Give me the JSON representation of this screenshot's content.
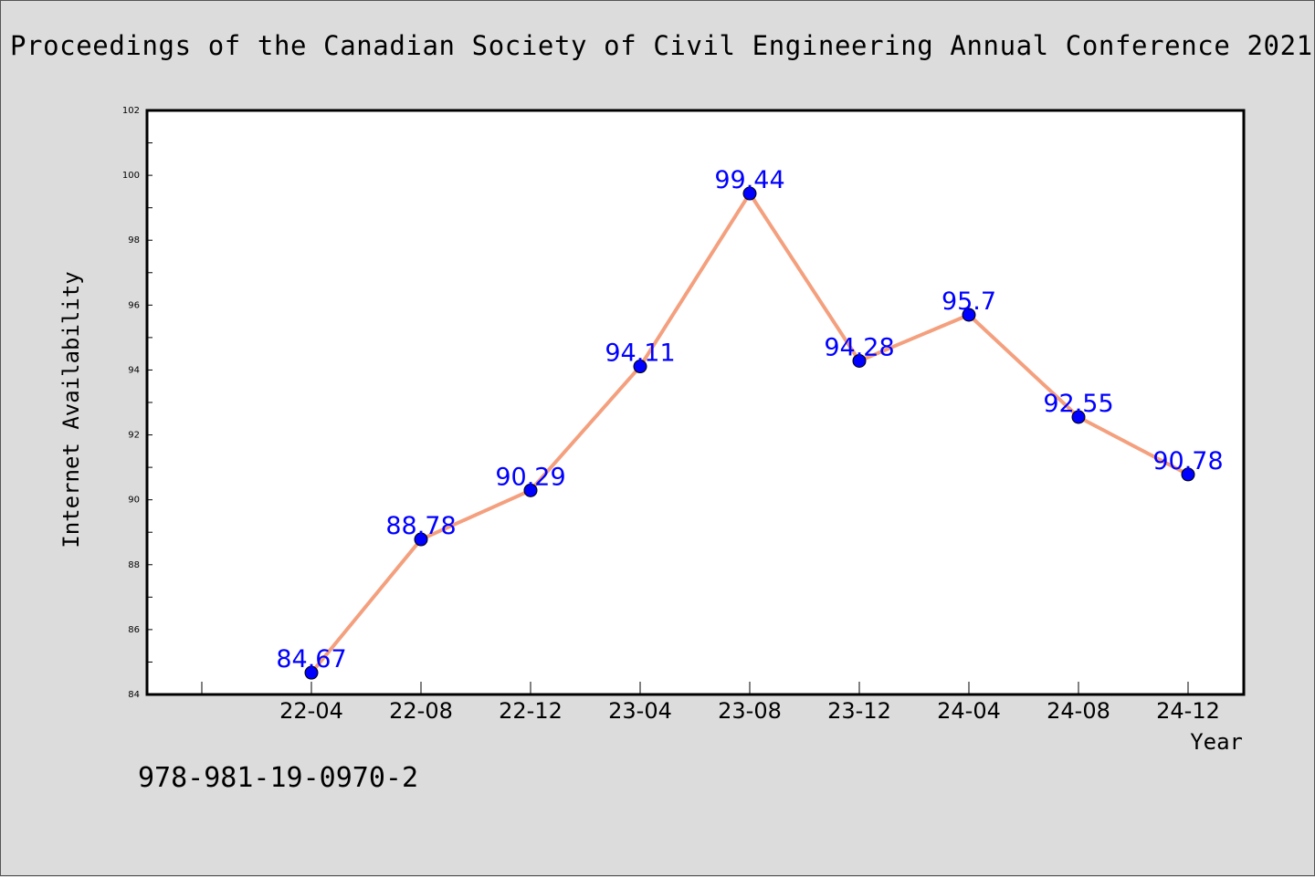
{
  "header": {
    "title": "Proceedings of the Canadian Society of Civil Engineering Annual Conference 2021"
  },
  "footer": {
    "isbn": "978-981-19-0970-2"
  },
  "chart_data": {
    "type": "line",
    "categories": [
      "22-04",
      "22-08",
      "22-12",
      "23-04",
      "23-08",
      "23-12",
      "24-04",
      "24-08",
      "24-12"
    ],
    "series": [
      {
        "values": [
          84.67,
          88.78,
          90.29,
          94.11,
          99.44,
          94.28,
          95.7,
          92.55,
          90.78
        ]
      }
    ],
    "data_labels": [
      "84.67",
      "88.78",
      "90.29",
      "94.11",
      "99.44",
      "94.28",
      "95.7",
      "92.55",
      "90.78"
    ],
    "xlabel": "Year",
    "ylabel": "Internet Availability",
    "ylim": [
      84,
      102
    ],
    "yticks": [
      84,
      86,
      88,
      90,
      92,
      94,
      96,
      98,
      100,
      102
    ],
    "grid": false,
    "colors": {
      "line": "#f4a07e",
      "marker": "#0000ff",
      "label": "#0000ff",
      "background": "#dcdcdc",
      "plot_background": "#ffffff"
    }
  }
}
